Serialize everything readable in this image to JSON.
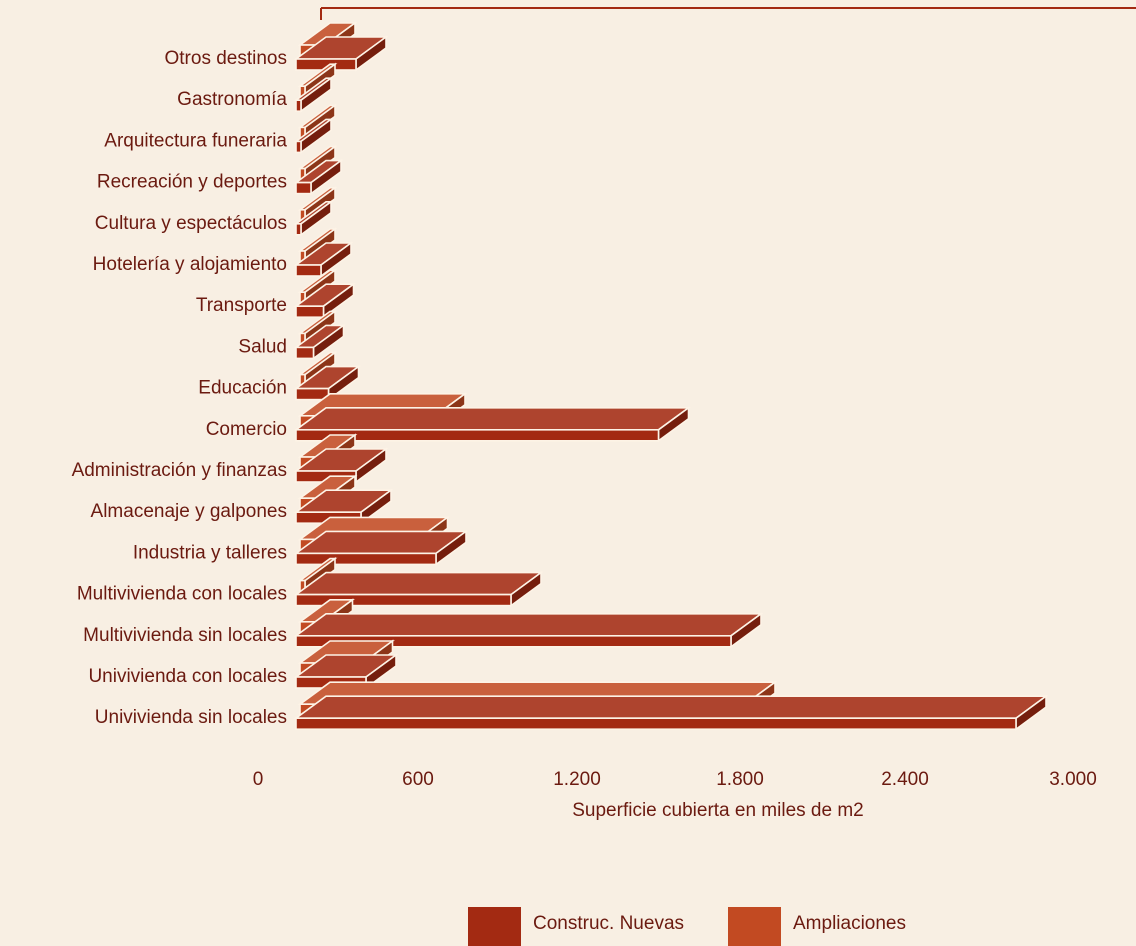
{
  "chart_data": {
    "type": "bar",
    "orientation": "horizontal",
    "style": "3d",
    "xlabel": "Superficie cubierta en miles de m2",
    "xticks": [
      "0",
      "600",
      "1.200",
      "1.800",
      "2.400",
      "3.000"
    ],
    "xlim": [
      0,
      3000
    ],
    "grid": false,
    "legend_position": "bottom",
    "categories": [
      "Otros destinos",
      "Gastronomía",
      "Arquitectura funeraria",
      "Recreación y deportes",
      "Cultura y espectáculos",
      "Hotelería y alojamiento",
      "Transporte",
      "Salud",
      "Educación",
      "Comercio",
      "Administración y finanzas",
      "Almacenaje y galpones",
      "Industria y talleres",
      "Multivivienda con locales",
      "Multivivienda sin locales",
      "Univivienda con locales",
      "Univivienda sin locales"
    ],
    "series": [
      {
        "name": "Construc. Nuevas",
        "color": "#a32a12",
        "values": [
          240,
          20,
          20,
          60,
          20,
          100,
          110,
          70,
          130,
          1450,
          240,
          260,
          560,
          860,
          1740,
          280,
          2880
        ]
      },
      {
        "name": "Ampliaciones",
        "color": "#c24a22",
        "values": [
          100,
          20,
          20,
          20,
          20,
          20,
          20,
          20,
          20,
          540,
          100,
          100,
          470,
          20,
          90,
          250,
          1780
        ]
      }
    ]
  }
}
